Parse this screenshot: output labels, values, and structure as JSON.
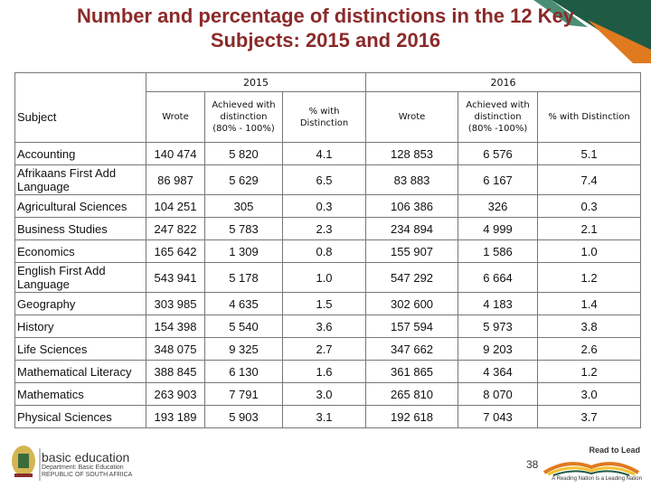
{
  "title": {
    "line1": "Number and percentage of distinctions in the 12 Key",
    "line2": "Subjects: 2015 and 2016"
  },
  "table": {
    "years": [
      "2015",
      "2016"
    ],
    "headers": {
      "subject": "Subject",
      "wrote": "Wrote",
      "achieved": "Achieved with distinction (80% - 100%)",
      "achieved_2016": "Achieved with distinction (80% -100%)",
      "pct": "% with Distinction"
    },
    "rows": [
      {
        "subject": "Accounting",
        "w15": "140 474",
        "a15": "5 820",
        "p15": "4.1",
        "w16": "128 853",
        "a16": "6 576",
        "p16": "5.1"
      },
      {
        "subject": "Afrikaans First Add Language",
        "w15": "86 987",
        "a15": "5 629",
        "p15": "6.5",
        "w16": "83 883",
        "a16": "6 167",
        "p16": "7.4"
      },
      {
        "subject": "Agricultural Sciences",
        "w15": "104 251",
        "a15": "305",
        "p15": "0.3",
        "w16": "106 386",
        "a16": "326",
        "p16": "0.3"
      },
      {
        "subject": "Business Studies",
        "w15": "247 822",
        "a15": "5 783",
        "p15": "2.3",
        "w16": "234 894",
        "a16": "4 999",
        "p16": "2.1"
      },
      {
        "subject": "Economics",
        "w15": "165 642",
        "a15": "1 309",
        "p15": "0.8",
        "w16": "155 907",
        "a16": "1 586",
        "p16": "1.0"
      },
      {
        "subject": "English First Add Language",
        "w15": "543 941",
        "a15": "5 178",
        "p15": "1.0",
        "w16": "547 292",
        "a16": "6 664",
        "p16": "1.2"
      },
      {
        "subject": "Geography",
        "w15": "303 985",
        "a15": "4 635",
        "p15": "1.5",
        "w16": "302 600",
        "a16": "4 183",
        "p16": "1.4"
      },
      {
        "subject": "History",
        "w15": "154 398",
        "a15": "5 540",
        "p15": "3.6",
        "w16": "157 594",
        "a16": "5 973",
        "p16": "3.8"
      },
      {
        "subject": "Life Sciences",
        "w15": "348 075",
        "a15": "9 325",
        "p15": "2.7",
        "w16": "347 662",
        "a16": "9 203",
        "p16": "2.6"
      },
      {
        "subject": "Mathematical Literacy",
        "w15": "388 845",
        "a15": "6 130",
        "p15": "1.6",
        "w16": "361 865",
        "a16": "4 364",
        "p16": "1.2"
      },
      {
        "subject": "Mathematics",
        "w15": "263 903",
        "a15": "7 791",
        "p15": "3.0",
        "w16": "265 810",
        "a16": "8 070",
        "p16": "3.0"
      },
      {
        "subject": "Physical Sciences",
        "w15": "193 189",
        "a15": "5 903",
        "p15": "3.1",
        "w16": "192 618",
        "a16": "7 043",
        "p16": "3.7"
      }
    ]
  },
  "footer": {
    "logo_main": "basic education",
    "logo_sub": "Department: Basic Education REPUBLIC OF SOUTH AFRICA",
    "page_number": "38",
    "read_to_lead": "Read to Lead",
    "read_to_lead_caption": "A Reading Nation is a Leading Nation"
  },
  "colors": {
    "title": "#8b2a2a",
    "deco_green": "#1f5a44",
    "deco_orange": "#e07a1f",
    "deco_yellow": "#f2c12e"
  }
}
